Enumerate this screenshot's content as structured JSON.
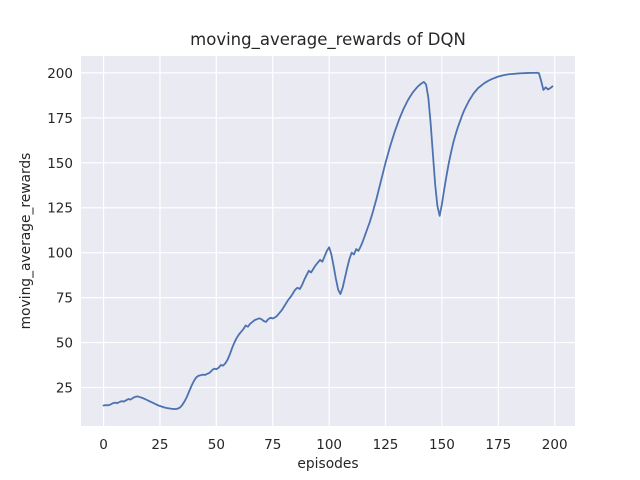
{
  "window": {
    "title": "moving_average_rewards of DQN"
  },
  "chart_data": {
    "type": "line",
    "title": "moving_average_rewards of DQN",
    "xlabel": "episodes",
    "ylabel": "moving_average_rewards",
    "x_ticks": [
      0,
      25,
      50,
      75,
      100,
      125,
      150,
      175,
      200
    ],
    "y_ticks": [
      25,
      50,
      75,
      100,
      125,
      150,
      175,
      200
    ],
    "xlim": [
      -10,
      209
    ],
    "ylim": [
      3.6,
      209.4
    ],
    "grid": true,
    "legend_position": "none",
    "style": {
      "line_color": "#4c72b0",
      "line_width": 1.8,
      "axes_background": "#eaeaf2",
      "grid_color": "#ffffff",
      "figure_background": "#ffffff",
      "text_color": "#262626"
    },
    "series": [
      {
        "name": "moving_average_rewards",
        "x_start": 0,
        "x_step": 1,
        "values": [
          15.0,
          15.2,
          15.1,
          15.5,
          16.2,
          16.6,
          16.3,
          16.9,
          17.4,
          17.2,
          17.9,
          18.6,
          18.3,
          19.2,
          19.8,
          20.1,
          19.7,
          19.3,
          18.8,
          18.2,
          17.6,
          17.0,
          16.4,
          15.8,
          15.2,
          14.7,
          14.3,
          13.9,
          13.6,
          13.4,
          13.2,
          13.1,
          13.0,
          13.3,
          14.0,
          15.5,
          17.5,
          20.0,
          23.0,
          26.0,
          28.5,
          30.5,
          31.5,
          31.8,
          32.2,
          32.0,
          32.6,
          33.2,
          34.5,
          35.5,
          35.2,
          36.0,
          37.5,
          37.2,
          38.5,
          40.5,
          43.5,
          47.0,
          50.0,
          52.5,
          54.5,
          56.0,
          57.5,
          59.5,
          58.8,
          60.5,
          61.5,
          62.5,
          63.0,
          63.5,
          63.0,
          62.0,
          61.5,
          63.0,
          63.8,
          63.4,
          64.0,
          65.0,
          66.5,
          68.0,
          70.0,
          72.0,
          74.0,
          75.5,
          77.5,
          79.5,
          80.5,
          79.8,
          82.0,
          85.0,
          87.5,
          90.0,
          89.0,
          91.0,
          93.0,
          94.5,
          96.0,
          95.0,
          98.0,
          101.0,
          103.0,
          99.0,
          92.5,
          85.5,
          79.5,
          77.0,
          80.5,
          86.0,
          91.5,
          96.5,
          100.0,
          99.0,
          102.0,
          101.0,
          103.5,
          106.5,
          110.0,
          113.5,
          117.0,
          121.0,
          125.5,
          130.0,
          135.0,
          140.0,
          145.0,
          150.0,
          154.5,
          159.0,
          163.0,
          167.0,
          170.5,
          174.0,
          177.0,
          180.0,
          182.5,
          185.0,
          187.0,
          189.0,
          190.5,
          192.0,
          193.2,
          194.2,
          195.0,
          193.5,
          186.0,
          172.0,
          155.0,
          138.0,
          126.0,
          120.5,
          127.0,
          135.0,
          142.5,
          149.5,
          155.5,
          161.0,
          165.5,
          169.5,
          173.0,
          176.5,
          179.5,
          182.0,
          184.5,
          186.5,
          188.5,
          190.0,
          191.5,
          192.5,
          193.5,
          194.5,
          195.2,
          195.9,
          196.5,
          197.0,
          197.5,
          198.0,
          198.3,
          198.6,
          198.9,
          199.1,
          199.3,
          199.4,
          199.5,
          199.6,
          199.7,
          199.8,
          199.8,
          199.9,
          199.9,
          200.0,
          200.0,
          200.0,
          200.1,
          199.9,
          195.5,
          190.5,
          192.0,
          190.8,
          191.5,
          192.5
        ]
      }
    ]
  }
}
